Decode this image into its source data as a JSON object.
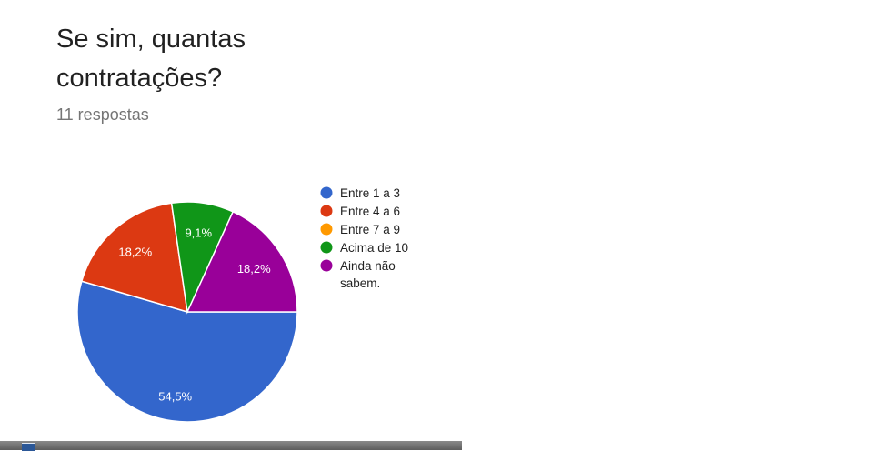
{
  "question": {
    "title": "Se sim, quantas contratações?",
    "responses": "11 respostas"
  },
  "chart_data": {
    "type": "pie",
    "slices": [
      {
        "label": "Entre 1 a 3",
        "value": 54.5,
        "display": "54,5%",
        "color": "#3366cc"
      },
      {
        "label": "Entre 4 a 6",
        "value": 18.2,
        "display": "18,2%",
        "color": "#dc3912"
      },
      {
        "label": "Entre 7 a 9",
        "value": 0,
        "display": "",
        "color": "#ff9900"
      },
      {
        "label": "Acima de 10",
        "value": 9.1,
        "display": "9,1%",
        "color": "#109618"
      },
      {
        "label": "Ainda não sabem.",
        "value": 18.2,
        "display": "18,2%",
        "color": "#990099"
      }
    ],
    "legend_position": "right"
  },
  "taskbar": {
    "icon": "window-icon"
  }
}
